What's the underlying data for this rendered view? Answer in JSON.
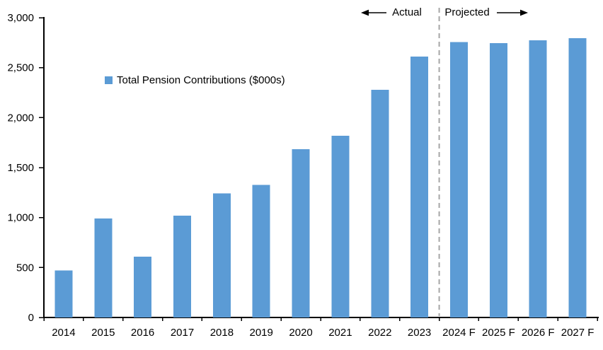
{
  "chart_data": {
    "type": "bar",
    "title": "",
    "legend": {
      "label": "Total Pension Contributions ($000s)"
    },
    "categories": [
      "2014",
      "2015",
      "2016",
      "2017",
      "2018",
      "2019",
      "2020",
      "2021",
      "2022",
      "2023",
      "2024 F",
      "2025 F",
      "2026 F",
      "2027 F"
    ],
    "values": [
      470,
      990,
      610,
      1020,
      1240,
      1325,
      1685,
      1820,
      2280,
      2610,
      2755,
      2745,
      2775,
      2795
    ],
    "xlabel": "",
    "ylabel": "",
    "ylim": [
      0,
      3000
    ],
    "ytick_step": 500,
    "yticks": [
      0,
      500,
      1000,
      1500,
      2000,
      2500,
      3000
    ],
    "ytick_labels": [
      "0",
      "500",
      "1,000",
      "1,500",
      "2,000",
      "2,500",
      "3,000"
    ],
    "grid": false,
    "legend_position": "inside-upper-left",
    "divider": {
      "after_category": "2023",
      "style": "dashed"
    },
    "annotations": {
      "actual_label": "Actual",
      "projected_label": "Projected"
    },
    "colors": {
      "bar": "#5B9BD5",
      "axis": "#000000",
      "divider": "#A6A6A6",
      "text": "#000000"
    }
  }
}
